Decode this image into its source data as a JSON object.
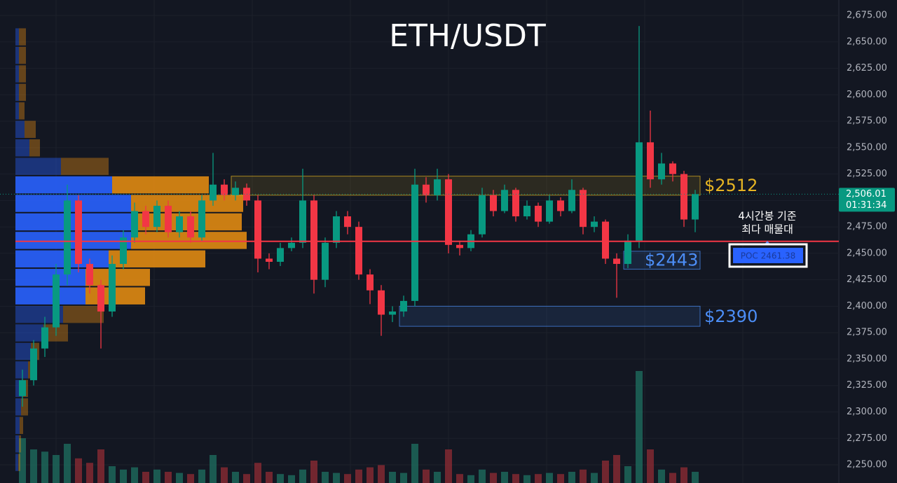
{
  "chart_data": {
    "type": "candlestick",
    "title": "ETH/USDT",
    "ylim": [
      2232.8,
      2689.6
    ],
    "yticks": [
      {
        "value": 2250,
        "label": "2,250.00"
      },
      {
        "value": 2275,
        "label": "2,275.00"
      },
      {
        "value": 2300,
        "label": "2,300.00"
      },
      {
        "value": 2325,
        "label": "2,325.00"
      },
      {
        "value": 2350,
        "label": "2,350.00"
      },
      {
        "value": 2375,
        "label": "2,375.00"
      },
      {
        "value": 2400,
        "label": "2,400.00"
      },
      {
        "value": 2425,
        "label": "2,425.00"
      },
      {
        "value": 2450,
        "label": "2,450.00"
      },
      {
        "value": 2475,
        "label": "2,475.00"
      },
      {
        "value": 2500,
        "label": "2,500.00"
      },
      {
        "value": 2525,
        "label": "2,525.00"
      },
      {
        "value": 2550,
        "label": "2,550.00"
      },
      {
        "value": 2575,
        "label": "2,575.00"
      },
      {
        "value": 2600,
        "label": "2,600.00"
      },
      {
        "value": 2625,
        "label": "2,625.00"
      },
      {
        "value": 2650,
        "label": "2,650.00"
      },
      {
        "value": 2675,
        "label": "2,675.00"
      }
    ],
    "grid": true,
    "up_color": "#089981",
    "down_color": "#f23645",
    "open": [
      2315,
      2330,
      2360,
      2380,
      2430,
      2500,
      2440,
      2420,
      2395,
      2440,
      2465,
      2490,
      2475,
      2495,
      2470,
      2485,
      2465,
      2500,
      2515,
      2505,
      2512,
      2500,
      2445,
      2442,
      2455,
      2460,
      2500,
      2425,
      2460,
      2485,
      2475,
      2430,
      2415,
      2392,
      2395,
      2405,
      2515,
      2505,
      2520,
      2458,
      2455,
      2468,
      2505,
      2490,
      2510,
      2485,
      2495,
      2480,
      2500,
      2490,
      2510,
      2475,
      2480,
      2445,
      2440,
      2462,
      2555,
      2520,
      2535,
      2525,
      2482
    ],
    "high": [
      2340,
      2368,
      2390,
      2440,
      2515,
      2505,
      2445,
      2425,
      2448,
      2472,
      2498,
      2495,
      2500,
      2500,
      2490,
      2490,
      2505,
      2545,
      2520,
      2518,
      2516,
      2505,
      2450,
      2460,
      2465,
      2530,
      2505,
      2465,
      2490,
      2490,
      2480,
      2435,
      2420,
      2400,
      2410,
      2530,
      2522,
      2530,
      2525,
      2462,
      2472,
      2512,
      2510,
      2515,
      2512,
      2500,
      2498,
      2505,
      2503,
      2520,
      2512,
      2485,
      2482,
      2450,
      2468,
      2665,
      2585,
      2545,
      2537,
      2528,
      2510
    ],
    "low": [
      2305,
      2325,
      2352,
      2372,
      2420,
      2432,
      2412,
      2360,
      2390,
      2435,
      2460,
      2468,
      2470,
      2465,
      2465,
      2460,
      2462,
      2495,
      2500,
      2500,
      2495,
      2432,
      2435,
      2438,
      2452,
      2455,
      2412,
      2418,
      2455,
      2468,
      2425,
      2402,
      2372,
      2385,
      2390,
      2400,
      2498,
      2500,
      2450,
      2448,
      2452,
      2465,
      2485,
      2488,
      2480,
      2482,
      2475,
      2478,
      2485,
      2488,
      2468,
      2470,
      2440,
      2408,
      2436,
      2455,
      2512,
      2515,
      2518,
      2475,
      2470
    ],
    "close": [
      2330,
      2360,
      2380,
      2430,
      2500,
      2440,
      2420,
      2395,
      2440,
      2465,
      2490,
      2475,
      2495,
      2470,
      2485,
      2465,
      2500,
      2515,
      2505,
      2512,
      2500,
      2445,
      2442,
      2455,
      2460,
      2500,
      2425,
      2460,
      2485,
      2475,
      2430,
      2415,
      2392,
      2395,
      2405,
      2515,
      2505,
      2520,
      2458,
      2455,
      2468,
      2505,
      2490,
      2510,
      2485,
      2495,
      2480,
      2500,
      2490,
      2510,
      2475,
      2480,
      2445,
      2440,
      2462,
      2555,
      2520,
      2535,
      2525,
      2482,
      2506
    ],
    "volume": [
      40,
      30,
      28,
      25,
      35,
      22,
      18,
      30,
      15,
      12,
      14,
      10,
      12,
      10,
      9,
      8,
      12,
      25,
      14,
      10,
      8,
      18,
      10,
      8,
      7,
      12,
      20,
      10,
      9,
      8,
      12,
      14,
      16,
      10,
      9,
      35,
      12,
      10,
      30,
      8,
      7,
      12,
      9,
      10,
      8,
      7,
      8,
      9,
      8,
      10,
      12,
      9,
      20,
      25,
      15,
      100,
      30,
      12,
      9,
      14,
      10
    ],
    "volume_color": "#1e6b5e",
    "volume_color_down": "#8a2a33",
    "profile": {
      "bins": [
        2243.5,
        2261,
        2278.5,
        2296,
        2313.5,
        2331,
        2348.5,
        2366,
        2383.5,
        2401,
        2418.5,
        2436,
        2453.5,
        2471,
        2488.5,
        2506,
        2523.5,
        2541,
        2558.5,
        2576,
        2593.5,
        2611,
        2628.5,
        2646,
        2663.5
      ],
      "buy": [
        4,
        5,
        6,
        8,
        10,
        18,
        22,
        40,
        68,
        100,
        100,
        133,
        165,
        165,
        165,
        138,
        65,
        20,
        13,
        5,
        5,
        5,
        5,
        5
      ],
      "sell": [
        3,
        3,
        5,
        10,
        8,
        6,
        12,
        35,
        58,
        85,
        92,
        138,
        165,
        158,
        160,
        138,
        68,
        15,
        16,
        8,
        10,
        10,
        10,
        10
      ],
      "buy_color": "#2962ff",
      "sell_color": "#e08a12",
      "value_area": [
        2401,
        2523.5
      ]
    },
    "zones": [
      {
        "label": "$2512",
        "low": 2505,
        "high": 2523,
        "start": 19,
        "color": "#e6b422"
      },
      {
        "label": "$2443",
        "low": 2435,
        "high": 2452,
        "start": 54,
        "color": "#4c8ef7"
      },
      {
        "label": "$2390",
        "low": 2381,
        "high": 2400,
        "start": 34,
        "color": "#4c8ef7"
      }
    ],
    "poc": {
      "value": 2461.38,
      "label": "POC  2461.38",
      "color": "#f23645"
    },
    "annotation": [
      "4시간봉 기준",
      "최다 매물대"
    ],
    "last_price": {
      "value": 2506.01,
      "label": "2,506.01"
    },
    "countdown": "01:31:34"
  }
}
